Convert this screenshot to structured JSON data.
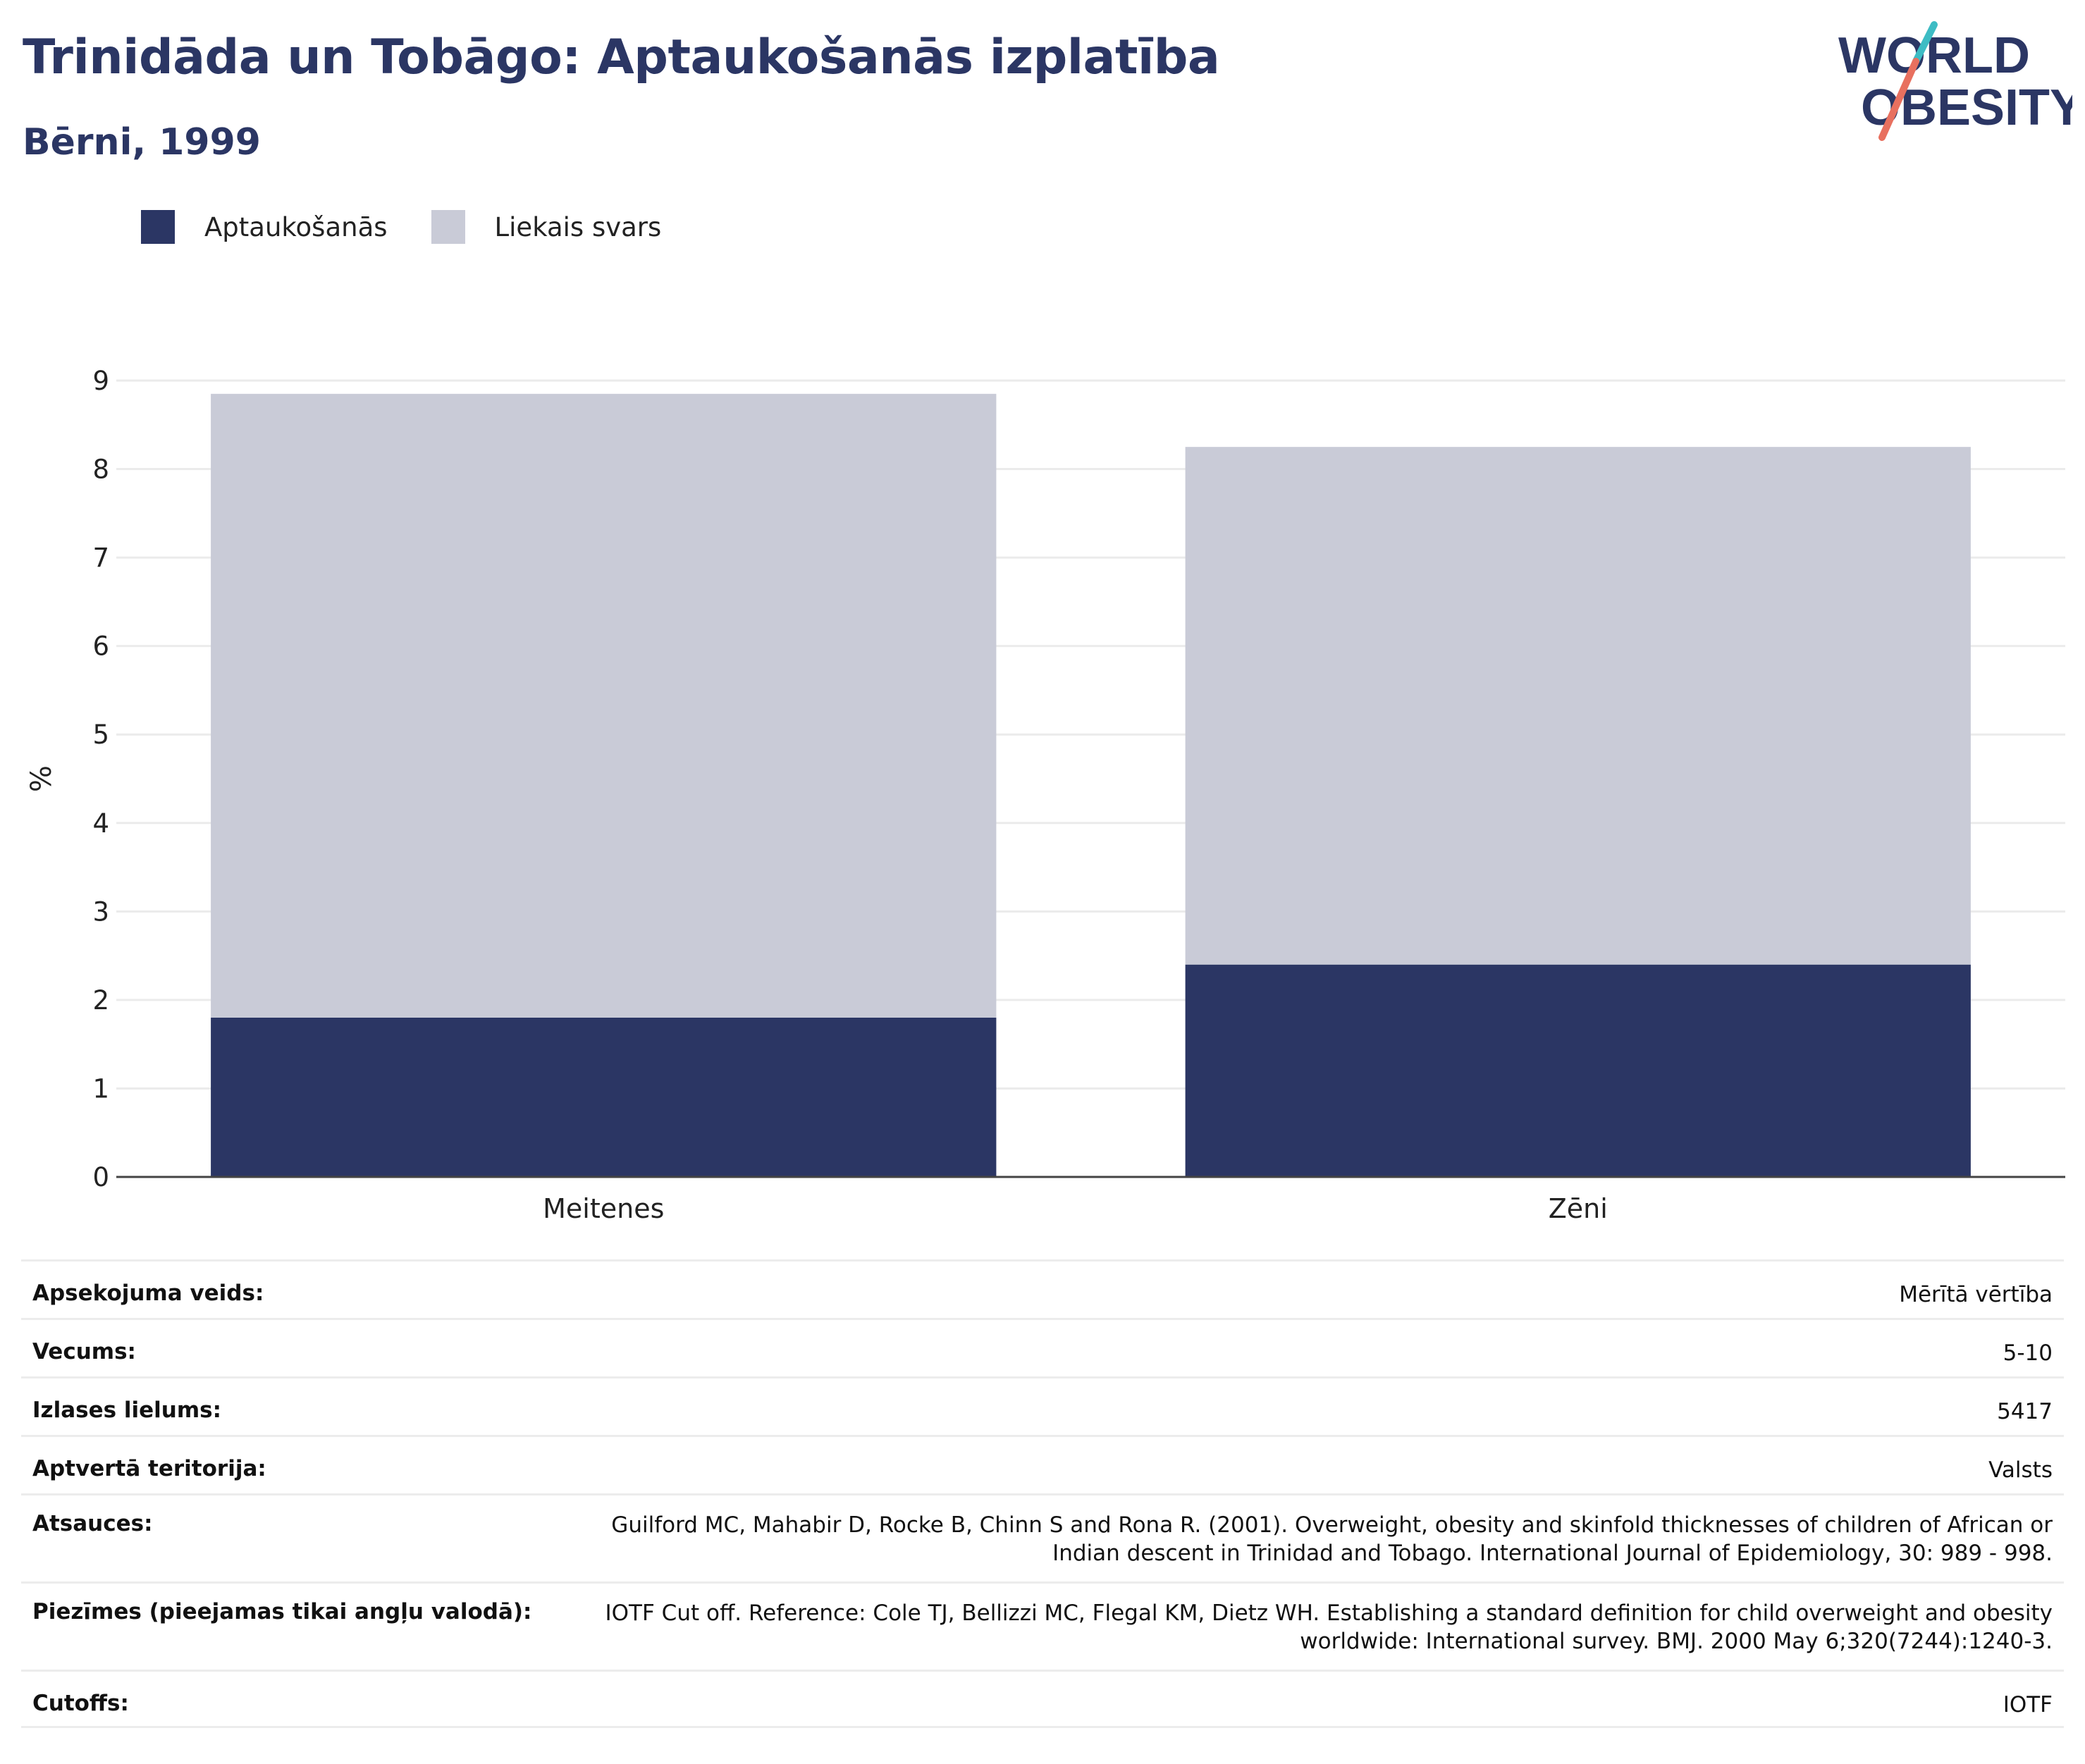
{
  "header": {
    "title": "Trinidāda un Tobāgo: Aptaukošanās izplatība",
    "subtitle": "Bērni, 1999"
  },
  "logo": {
    "line1": "WORLD",
    "line2": "OBESITY",
    "accent_color": "#e8705f",
    "accent_color_2": "#3dbcc4"
  },
  "legend": [
    {
      "label": "Aptaukošanās",
      "color": "#2b3664"
    },
    {
      "label": "Liekais svars",
      "color": "#c9cbd7"
    }
  ],
  "chart_data": {
    "type": "bar",
    "stacked": true,
    "categories": [
      "Meitenes",
      "Zēni"
    ],
    "series": [
      {
        "name": "Aptaukošanās",
        "values": [
          1.8,
          2.4
        ],
        "color": "#2b3664"
      },
      {
        "name": "Liekais svars",
        "values": [
          7.05,
          5.85
        ],
        "color": "#c9cbd7"
      }
    ],
    "ylabel": "%",
    "ylim": [
      0,
      9
    ],
    "yticks": [
      0,
      1,
      2,
      3,
      4,
      5,
      6,
      7,
      8,
      9
    ],
    "grid": true,
    "legend_position": "top-left"
  },
  "info": [
    {
      "label": "Apsekojuma veids:",
      "value": "Mērītā vērtība"
    },
    {
      "label": "Vecums:",
      "value": "5-10"
    },
    {
      "label": "Izlases lielums:",
      "value": "5417"
    },
    {
      "label": "Aptvertā teritorija:",
      "value": "Valsts"
    },
    {
      "label": "Atsauces:",
      "value": "Guilford MC, Mahabir D, Rocke B, Chinn S and Rona R. (2001). Overweight, obesity and skinfold thicknesses of children of African or Indian descent in Trinidad and Tobago. International Journal of Epidemiology, 30: 989 - 998."
    },
    {
      "label": "Piezīmes (pieejamas tikai angļu valodā):",
      "value": "IOTF Cut off. Reference: Cole TJ, Bellizzi MC, Flegal KM, Dietz WH. Establishing a standard definition for child overweight and obesity worldwide: International survey. BMJ. 2000 May 6;320(7244):1240-3."
    },
    {
      "label": "Cutoffs:",
      "value": "IOTF"
    }
  ]
}
